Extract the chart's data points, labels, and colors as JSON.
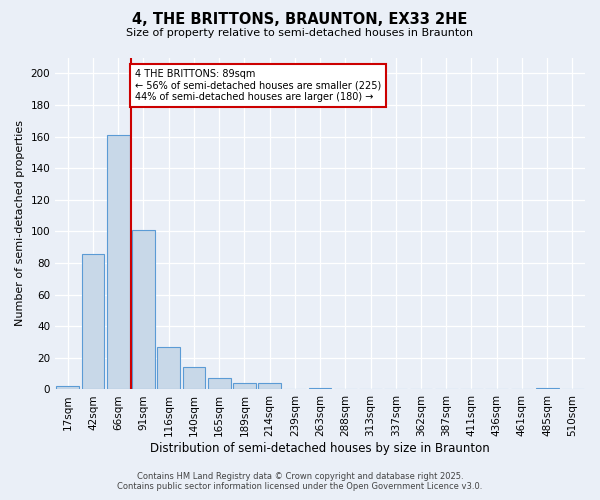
{
  "title": "4, THE BRITTONS, BRAUNTON, EX33 2HE",
  "subtitle": "Size of property relative to semi-detached houses in Braunton",
  "xlabel": "Distribution of semi-detached houses by size in Braunton",
  "ylabel": "Number of semi-detached properties",
  "bar_labels": [
    "17sqm",
    "42sqm",
    "66sqm",
    "91sqm",
    "116sqm",
    "140sqm",
    "165sqm",
    "189sqm",
    "214sqm",
    "239sqm",
    "263sqm",
    "288sqm",
    "313sqm",
    "337sqm",
    "362sqm",
    "387sqm",
    "411sqm",
    "436sqm",
    "461sqm",
    "485sqm",
    "510sqm"
  ],
  "bar_values": [
    2,
    86,
    161,
    101,
    27,
    14,
    7,
    4,
    4,
    0,
    1,
    0,
    0,
    0,
    0,
    0,
    0,
    0,
    0,
    1,
    0
  ],
  "annotation_title": "4 THE BRITTONS: 89sqm",
  "annotation_line1": "← 56% of semi-detached houses are smaller (225)",
  "annotation_line2": "44% of semi-detached houses are larger (180) →",
  "ylim": [
    0,
    210
  ],
  "yticks": [
    0,
    20,
    40,
    60,
    80,
    100,
    120,
    140,
    160,
    180,
    200
  ],
  "bar_color": "#c8d8e8",
  "bar_edge_color": "#5b9bd5",
  "line_color": "#cc0000",
  "annotation_box_color": "#cc0000",
  "background_color": "#eaeff7",
  "footer_line1": "Contains HM Land Registry data © Crown copyright and database right 2025.",
  "footer_line2": "Contains public sector information licensed under the Open Government Licence v3.0."
}
